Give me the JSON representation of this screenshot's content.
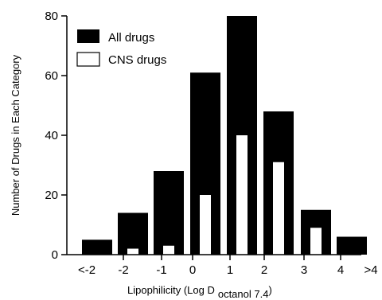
{
  "chart_data": {
    "type": "bar",
    "categories": [
      "<-2 to -2",
      "-2 to -1",
      "-1 to 0",
      "0 to 1",
      "1 to 2",
      "2 to 3",
      "3 to 4",
      "4 to >4"
    ],
    "x_tick_labels": [
      "<-2",
      "-2",
      "-1",
      "0",
      "1",
      "2",
      "3",
      "4",
      ">4"
    ],
    "series": [
      {
        "name": "All drugs",
        "color": "#000000",
        "values": [
          5,
          14,
          28,
          61,
          80,
          48,
          15,
          6
        ]
      },
      {
        "name": "CNS drugs",
        "color": "#ffffff",
        "values": [
          0,
          2,
          3,
          20,
          40,
          31,
          9,
          0
        ]
      }
    ],
    "xlabel_main": "Lipophilicity (Log D",
    "xlabel_subscript": "octanol 7.4",
    "xlabel_close": ")",
    "ylabel": "Number of Drugs in Each Category",
    "ylim": [
      0,
      80
    ],
    "yticks": [
      0,
      20,
      40,
      60,
      80
    ],
    "legend_position": "top-left",
    "grid": false
  }
}
